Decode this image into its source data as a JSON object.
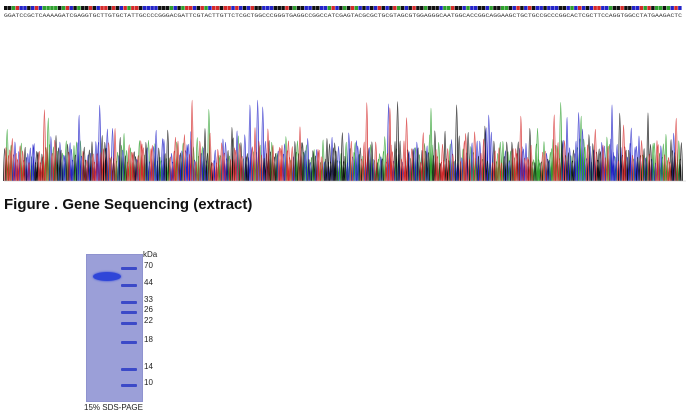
{
  "caption": "Figure . Gene Sequencing (extract)",
  "sequence_text": "GGATCCGCTCAAAAGATCGAGGTGCTTGTGCTATTGCCCCGGGACGATTCGTACTTGTTCTCGCTGGCCCGGGTGAGGCCGGCCATCGAGTACGCGCTGCGTAGCGTGGAGGGCAATGGCACCGGCAGGAAGCTGCTGCCGCCCGGCACTCGCTTCCAGGTGGCCTATGAAGACTC",
  "colors": {
    "A": "#2ea02e",
    "C": "#2323c8",
    "G": "#111111",
    "T": "#d42a2a"
  },
  "gel": {
    "unit": "kDa",
    "caption": "15% SDS-PAGE",
    "markers": [
      "70",
      "44",
      "33",
      "26",
      "22",
      "18",
      "14",
      "10"
    ]
  }
}
